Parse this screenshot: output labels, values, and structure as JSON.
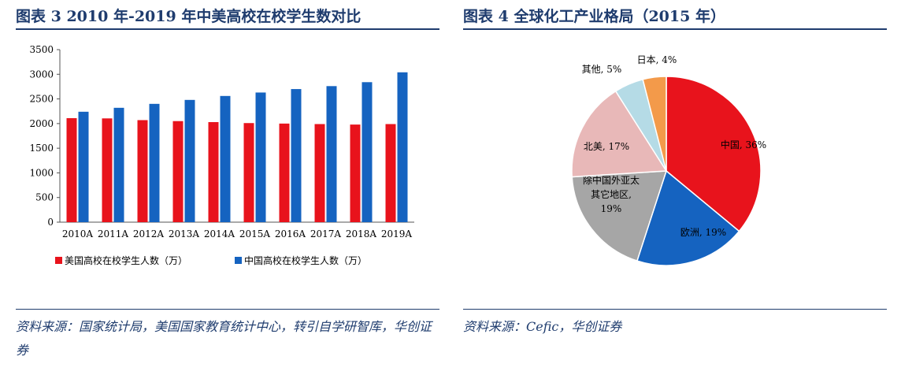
{
  "figures": {
    "left": {
      "title": "图表 3   2010 年-2019 年中美高校在校学生数对比",
      "source": "资料来源：国家统计局，美国国家教育统计中心，转引自学研智库，华创证券"
    },
    "right": {
      "title": "图表 4   全球化工产业格局（2015 年）",
      "source": "资料来源：Cefic，华创证券"
    }
  },
  "chart_data": [
    {
      "type": "bar",
      "title": "",
      "xlabel": "",
      "ylabel": "",
      "categories": [
        "2010A",
        "2011A",
        "2012A",
        "2013A",
        "2014A",
        "2015A",
        "2016A",
        "2017A",
        "2018A",
        "2019A"
      ],
      "ylim": [
        0,
        3500
      ],
      "yticks": [
        0,
        500,
        1000,
        1500,
        2000,
        2500,
        3000,
        3500
      ],
      "grid": false,
      "legend_position": "bottom",
      "series": [
        {
          "name": "美国高校在校学生人数（万）",
          "color": "#e8131c",
          "values": [
            2110,
            2105,
            2070,
            2050,
            2030,
            2010,
            2000,
            1990,
            1980,
            1990
          ]
        },
        {
          "name": "中国高校在校学生人数（万）",
          "color": "#1563c0",
          "values": [
            2240,
            2320,
            2400,
            2480,
            2560,
            2630,
            2700,
            2760,
            2840,
            3040
          ]
        }
      ]
    },
    {
      "type": "pie",
      "title": "",
      "slices": [
        {
          "label": "中国, 36%",
          "value": 36,
          "color": "#e8131c",
          "label_color": "#000000"
        },
        {
          "label": "欧洲, 19%",
          "value": 19,
          "color": "#1563c0",
          "label_color": "#000000"
        },
        {
          "label": "除中国外亚太\n其它地区,\n19%",
          "value": 19,
          "color": "#a6a6a6",
          "label_color": "#000000"
        },
        {
          "label": "北美, 17%",
          "value": 17,
          "color": "#e8b8b8",
          "label_color": "#000000"
        },
        {
          "label": "其他, 5%",
          "value": 5,
          "color": "#b5dbe6",
          "label_color": "#000000"
        },
        {
          "label": "日本, 4%",
          "value": 4,
          "color": "#f39a4a",
          "label_color": "#000000"
        }
      ]
    }
  ]
}
